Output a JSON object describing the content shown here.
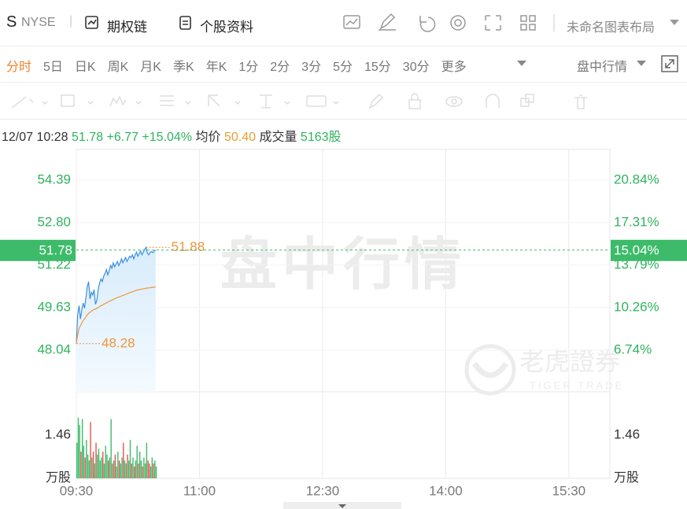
{
  "header": {
    "symbol": "S",
    "exchange": "NYSE",
    "links": [
      "期权链",
      "个股资料"
    ],
    "layout": "未命名图表布局"
  },
  "periods": {
    "items": [
      "分时",
      "5日",
      "日K",
      "周K",
      "月K",
      "季K",
      "年K",
      "1分",
      "2分",
      "3分",
      "5分",
      "15分",
      "30分",
      "更多"
    ],
    "active": 0,
    "mode": "盘中行情"
  },
  "info": {
    "time": "12/07 10:28",
    "price": "51.78",
    "change": "+6.77",
    "change_pct": "+15.04%",
    "avg_label": "均价",
    "avg": "50.40",
    "volume_label": "成交量",
    "volume": "5163股"
  },
  "chart_data": {
    "type": "line",
    "x": [
      "09:30",
      "09:31",
      "09:32",
      "09:33",
      "09:34",
      "09:35",
      "09:36",
      "09:37",
      "09:38",
      "09:39",
      "09:40",
      "09:41",
      "09:42",
      "09:43",
      "09:44",
      "09:45",
      "09:46",
      "09:47",
      "09:48",
      "09:49",
      "09:50",
      "09:51",
      "09:52",
      "09:53",
      "09:54",
      "09:55",
      "09:56",
      "09:57",
      "09:58",
      "09:59",
      "10:00",
      "10:01",
      "10:02",
      "10:03",
      "10:04",
      "10:05",
      "10:06",
      "10:07",
      "10:08",
      "10:09",
      "10:10",
      "10:11",
      "10:12",
      "10:13",
      "10:14",
      "10:15",
      "10:16",
      "10:17",
      "10:18",
      "10:19",
      "10:20",
      "10:21",
      "10:22",
      "10:23",
      "10:24",
      "10:25",
      "10:26",
      "10:27",
      "10:28"
    ],
    "xlim": [
      "09:30",
      "16:00"
    ],
    "xticks": [
      "09:30",
      "11:00",
      "12:30",
      "14:00",
      "15:30"
    ],
    "ylim": [
      46.48,
      55.54
    ],
    "yticks": [
      54.39,
      {
        "value": 52.8,
        "label": "52.80"
      },
      51.22,
      49.63,
      48.04
    ],
    "y2lim": [
      3.27,
      23.39
    ],
    "y2ticks": [
      {
        "value": 20.84,
        "label": "20.84%"
      },
      {
        "value": 17.31,
        "label": "17.31%"
      },
      {
        "value": 13.79,
        "label": "13.79%"
      },
      {
        "value": 10.26,
        "label": "10.26%"
      },
      {
        "value": 6.74,
        "label": "6.74%"
      }
    ],
    "grid": true,
    "series": [
      {
        "color": "#3b8fe0",
        "values": [
          48.28,
          49.35,
          49.7,
          49.2,
          49.55,
          49.8,
          49.6,
          50.0,
          50.4,
          50.6,
          49.95,
          50.2,
          50.1,
          50.3,
          49.75,
          49.9,
          50.3,
          50.55,
          50.7,
          50.6,
          50.8,
          50.9,
          51.05,
          50.85,
          51.0,
          51.2,
          51.1,
          51.3,
          51.15,
          51.25,
          51.35,
          51.2,
          51.3,
          51.45,
          51.3,
          51.4,
          51.5,
          51.35,
          51.45,
          51.55,
          51.5,
          51.6,
          51.45,
          51.6,
          51.7,
          51.55,
          51.65,
          51.75,
          51.6,
          51.7,
          51.8,
          51.88,
          51.65,
          51.6,
          51.7,
          51.72,
          51.68,
          51.75,
          51.78
        ]
      },
      {
        "color": "#f0963a",
        "values": [
          48.3,
          48.6,
          48.85,
          48.95,
          49.05,
          49.15,
          49.2,
          49.28,
          49.35,
          49.42,
          49.45,
          49.5,
          49.53,
          49.56,
          49.58,
          49.6,
          49.63,
          49.66,
          49.7,
          49.72,
          49.75,
          49.78,
          49.8,
          49.83,
          49.86,
          49.88,
          49.91,
          49.93,
          49.96,
          49.98,
          50.0,
          50.02,
          50.04,
          50.06,
          50.08,
          50.1,
          50.12,
          50.14,
          50.16,
          50.18,
          50.2,
          50.22,
          50.24,
          50.26,
          50.28,
          50.29,
          50.3,
          50.31,
          50.32,
          50.33,
          50.34,
          50.35,
          50.36,
          50.37,
          50.37,
          50.38,
          50.39,
          50.39,
          50.4
        ]
      }
    ],
    "last": {
      "value": 51.78,
      "pct": {
        "value": 15.04,
        "label": "15.04%"
      },
      "color": "#3dbb6a"
    },
    "annotations": [
      {
        "x": "10:21",
        "value": 51.88
      },
      {
        "x": "09:30",
        "value": 48.28
      }
    ],
    "annotation_color": "#f0963a",
    "watermark": {
      "text": "盘中行情",
      "brand": "老虎證券",
      "brand_en": "TIGER TRADE"
    },
    "volume": {
      "values": [
        1.2,
        2.05,
        1.8,
        0.9,
        2.0,
        1.1,
        0.7,
        1.3,
        0.8,
        0.6,
        1.9,
        0.7,
        0.9,
        0.5,
        1.2,
        0.8,
        1.0,
        0.6,
        0.7,
        0.9,
        0.5,
        1.1,
        0.8,
        0.6,
        0.7,
        2.0,
        0.5,
        0.6,
        0.8,
        0.4,
        0.9,
        0.6,
        0.5,
        0.7,
        1.2,
        0.6,
        0.5,
        0.8,
        0.6,
        1.3,
        0.5,
        0.7,
        0.4,
        0.6,
        1.1,
        0.5,
        0.9,
        0.6,
        0.4,
        0.7,
        0.5,
        1.2,
        0.6,
        0.5,
        0.4,
        0.7,
        0.5,
        0.6,
        0.4
      ],
      "ylim": [
        0,
        2.92
      ],
      "yticks": [
        1.46
      ],
      "unit": "万股",
      "up_color": "#3dbb6a",
      "down_color": "#e8544e"
    }
  }
}
